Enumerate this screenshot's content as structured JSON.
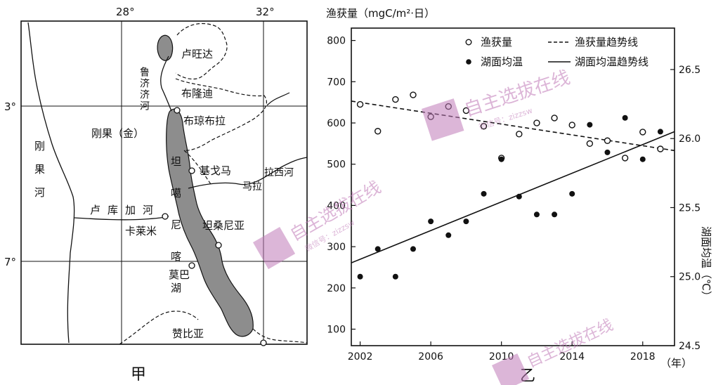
{
  "map": {
    "title": "甲",
    "lon_labels": [
      "28°",
      "32°"
    ],
    "lat_labels": [
      "3°",
      "7°"
    ],
    "places": {
      "rwanda": "卢旺达",
      "burundi": "布隆迪",
      "bujumbura": "布琼布拉",
      "congo": "刚果（金）",
      "kigoma": "基戈马",
      "malagarasi": "马拉",
      "malagarasi_river": "拉西河",
      "tanzania": "坦桑尼亚",
      "kalemie": "卡莱米",
      "mpulungu": "莫巴",
      "zambia": "赞比亚",
      "lukuga_river": "卢库加河",
      "congo_river": "刚果河",
      "ruzizi_river": "鲁济济河",
      "lake_name": "坦噶尼喀湖"
    }
  },
  "chart_data": {
    "type": "scatter",
    "title": "乙",
    "ylabel_left": "渔获量（mgC/m²·日）",
    "ylabel_right": "湖面均温（℃）",
    "xlabel": "（年）",
    "x_ticks": [
      2002,
      2006,
      2010,
      2014,
      2018
    ],
    "y_left_ticks": [
      100,
      200,
      300,
      400,
      500,
      600,
      700,
      800
    ],
    "y_right_ticks": [
      24.5,
      25.0,
      25.5,
      26.0,
      26.5
    ],
    "xlim": [
      2001.5,
      2019.8
    ],
    "ylim_left": [
      60,
      830
    ],
    "ylim_right": [
      24.5,
      26.8
    ],
    "legend": {
      "catch_points": "渔获量",
      "catch_trend": "渔获量趋势线",
      "temp_points": "湖面均温",
      "temp_trend": "湖面均温趋势线"
    },
    "series": [
      {
        "name": "渔获量",
        "axis": "left",
        "x": [
          2002,
          2003,
          2004,
          2005,
          2006,
          2007,
          2008,
          2009,
          2010,
          2011,
          2012,
          2013,
          2014,
          2015,
          2016,
          2017,
          2018,
          2019
        ],
        "y": [
          645,
          580,
          657,
          668,
          615,
          640,
          630,
          592,
          515,
          573,
          600,
          612,
          595,
          550,
          557,
          515,
          578,
          537
        ]
      },
      {
        "name": "湖面均温",
        "axis": "right",
        "x": [
          2002,
          2003,
          2004,
          2005,
          2006,
          2007,
          2008,
          2009,
          2010,
          2011,
          2012,
          2013,
          2014,
          2015,
          2016,
          2017,
          2018,
          2019
        ],
        "y": [
          25.0,
          25.2,
          25.0,
          25.2,
          25.4,
          25.3,
          25.4,
          25.6,
          25.85,
          25.58,
          25.45,
          25.45,
          25.6,
          26.1,
          25.9,
          26.15,
          25.85,
          26.05
        ]
      }
    ],
    "trend_lines": [
      {
        "name": "渔获量趋势线",
        "axis": "left",
        "x": [
          2001.5,
          2019.8
        ],
        "y": [
          653,
          533
        ],
        "style": "dashed"
      },
      {
        "name": "湖面均温趋势线",
        "axis": "right",
        "x": [
          2001.5,
          2019.8
        ],
        "y": [
          25.1,
          26.05
        ],
        "style": "solid"
      }
    ]
  },
  "watermark": {
    "brand": "自主选拔在线",
    "wechat": "微信号：zizzsw"
  },
  "colors": {
    "lake": "#8d8d8d",
    "watermark": "#c07ab8"
  }
}
